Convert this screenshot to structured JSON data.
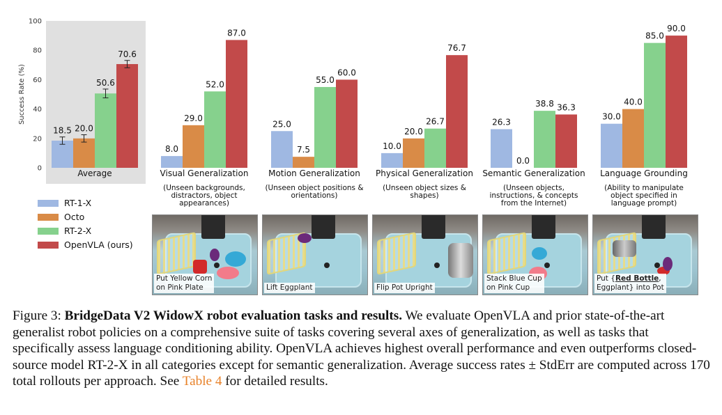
{
  "chart_data": {
    "type": "bar",
    "ylabel": "Success Rate (%)",
    "ylim": [
      0,
      100
    ],
    "yticks": [
      0,
      20,
      40,
      60,
      80,
      100
    ],
    "grid": false,
    "legend_position": "left",
    "colors": {
      "RT-1-X": "#9fb8e2",
      "Octo": "#d98b47",
      "RT-2-X": "#86d18d",
      "OpenVLA (ours)": "#c24a4a"
    },
    "highlight_background": "#e0e0e0",
    "categories": [
      {
        "name": "Average",
        "subtitle": ""
      },
      {
        "name": "Visual Generalization",
        "subtitle": "(Unseen backgrounds, distractors, object appearances)"
      },
      {
        "name": "Motion Generalization",
        "subtitle": "(Unseen object positions & orientations)"
      },
      {
        "name": "Physical Generalization",
        "subtitle": "(Unseen object sizes & shapes)"
      },
      {
        "name": "Semantic Generalization",
        "subtitle": "(Unseen objects, instructions, & concepts from the Internet)"
      },
      {
        "name": "Language Grounding",
        "subtitle": "(Ability to manipulate object specified in language prompt)"
      }
    ],
    "series": [
      {
        "name": "RT-1-X",
        "values": [
          18.5,
          8.0,
          25.0,
          10.0,
          26.3,
          30.0
        ],
        "labels": [
          "18.5",
          "8.0",
          "25.0",
          "10.0",
          "26.3",
          "30.0"
        ]
      },
      {
        "name": "Octo",
        "values": [
          20.0,
          29.0,
          7.5,
          20.0,
          0.0,
          40.0
        ],
        "labels": [
          "20.0",
          "29.0",
          "7.5",
          "20.0",
          "0.0",
          "40.0"
        ]
      },
      {
        "name": "RT-2-X",
        "values": [
          50.6,
          52.0,
          55.0,
          26.7,
          38.8,
          85.0
        ],
        "labels": [
          "50.6",
          "52.0",
          "55.0",
          "26.7",
          "38.8",
          "85.0"
        ]
      },
      {
        "name": "OpenVLA (ours)",
        "values": [
          70.6,
          87.0,
          60.0,
          76.7,
          36.3,
          90.0
        ],
        "labels": [
          "70.6",
          "87.0",
          "60.0",
          "76.7",
          "36.3",
          "90.0"
        ]
      }
    ],
    "average_stderr": [
      2.5,
      2.5,
      3.0,
      2.5
    ]
  },
  "photos": [
    {
      "caption_lines": [
        "Put Yellow Corn",
        "on Pink Plate"
      ]
    },
    {
      "caption_lines": [
        "Lift Eggplant"
      ]
    },
    {
      "caption_lines": [
        "Flip Pot Upright"
      ]
    },
    {
      "caption_lines": [
        "Stack Blue Cup",
        "on Pink Cup"
      ]
    },
    {
      "caption_pre": "Put {",
      "caption_bold": "Red Bottle",
      "caption_post_line1": ",",
      "caption_line2": "Eggplant} into Pot"
    }
  ],
  "figure_caption": {
    "label": "Figure 3:",
    "bold": "BridgeData V2 WidowX robot evaluation tasks and results.",
    "text1": "We evaluate OpenVLA and prior state-of-the-art generalist robot policies on a comprehensive suite of tasks covering several axes of generalization, as well as tasks that specifically assess language conditioning ability. OpenVLA achieves highest overall performance and even outperforms closed-source model RT-2-X in all categories except for semantic generalization. Average success rates ± StdErr are computed across 170 total rollouts per approach. See",
    "ref": "Table 4",
    "text2": "for detailed results."
  }
}
